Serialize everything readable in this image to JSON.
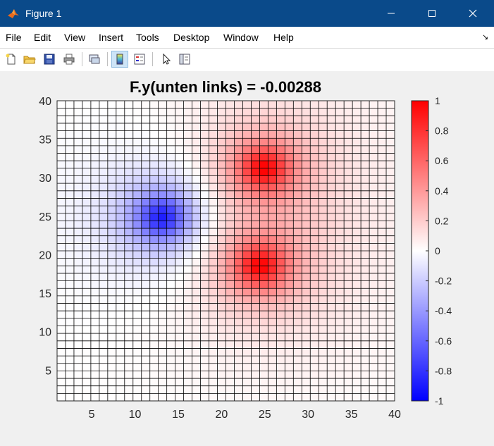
{
  "window": {
    "title": "Figure 1",
    "controls": {
      "minimize": "minimize",
      "maximize": "maximize",
      "close": "close"
    }
  },
  "menubar": {
    "items": [
      {
        "label": "File"
      },
      {
        "label": "Edit"
      },
      {
        "label": "View"
      },
      {
        "label": "Insert"
      },
      {
        "label": "Tools"
      },
      {
        "label": "Desktop"
      },
      {
        "label": "Window"
      },
      {
        "label": "Help"
      }
    ]
  },
  "toolbar": {
    "buttons": [
      {
        "icon": "new-figure-icon"
      },
      {
        "icon": "open-file-icon"
      },
      {
        "icon": "save-icon"
      },
      {
        "icon": "print-icon"
      },
      {
        "icon": "link-plot-icon"
      },
      {
        "icon": "insert-colorbar-icon",
        "active": true
      },
      {
        "icon": "insert-legend-icon"
      },
      {
        "icon": "pointer-icon"
      },
      {
        "icon": "property-inspector-icon"
      }
    ]
  },
  "chart_data": {
    "type": "heatmap",
    "title": "F.y(unten links) = -0.00288",
    "xlabel": "",
    "ylabel": "",
    "xlim": [
      1,
      40
    ],
    "ylim": [
      1,
      40
    ],
    "x_ticks": [
      5,
      10,
      15,
      20,
      25,
      30,
      35,
      40
    ],
    "y_ticks": [
      5,
      10,
      15,
      20,
      25,
      30,
      35,
      40
    ],
    "grid_size": [
      40,
      40
    ],
    "grid_lines": true,
    "sources": [
      {
        "x": 13.5,
        "y": 25.5,
        "sign": -1,
        "peak": -1.0
      },
      {
        "x": 25.5,
        "y": 32,
        "sign": 1,
        "peak": 1.0
      },
      {
        "x": 25.0,
        "y": 19,
        "sign": 1,
        "peak": 1.0
      }
    ],
    "colorbar": {
      "range": [
        -1,
        1
      ],
      "ticks": [
        1,
        0.8,
        0.6,
        0.4,
        0.2,
        0,
        -0.2,
        -0.4,
        -0.6,
        -0.8,
        -1
      ],
      "colormap": "blue-white-red",
      "colors": {
        "low": "#0000ff",
        "mid": "#ffffff",
        "high": "#ff0000"
      }
    }
  }
}
